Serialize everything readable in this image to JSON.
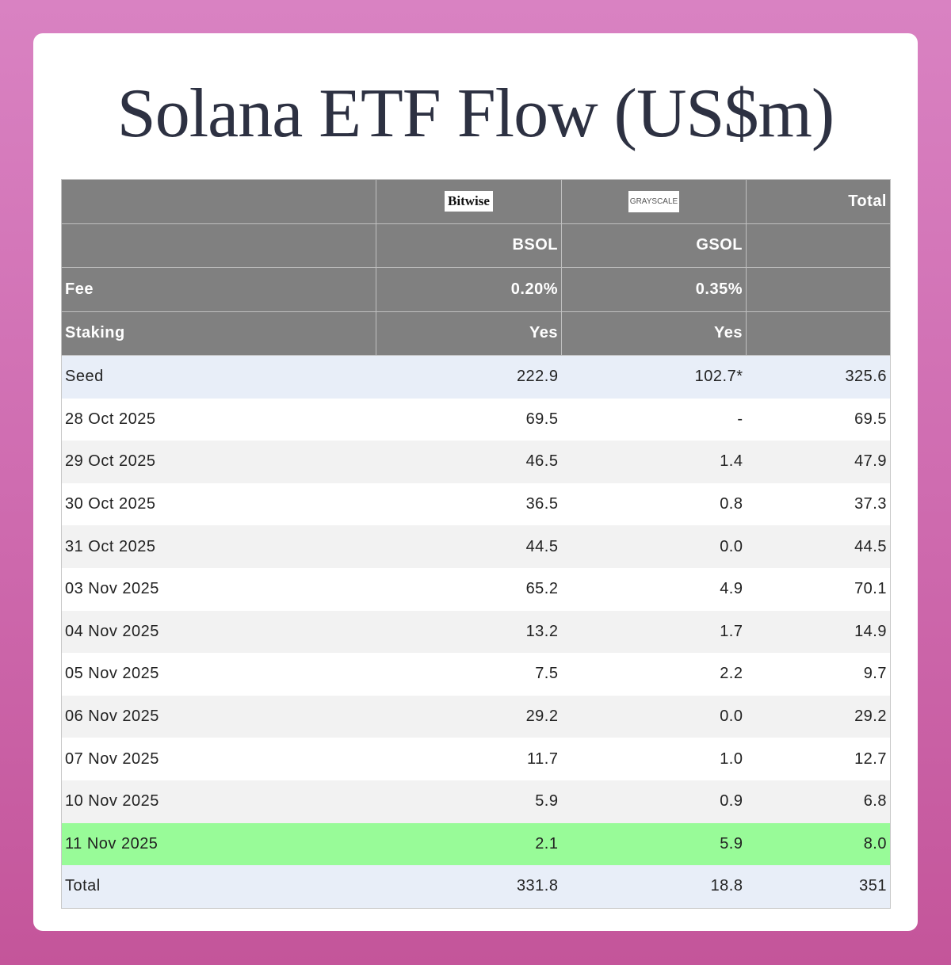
{
  "title": "Solana ETF Flow (US$m)",
  "header": {
    "issuers": [
      "Bitwise",
      "GRAYSCALE"
    ],
    "total_label": "Total",
    "tickers": [
      "BSOL",
      "GSOL"
    ],
    "fee": {
      "label": "Fee",
      "values": [
        "0.20%",
        "0.35%"
      ]
    },
    "staking": {
      "label": "Staking",
      "values": [
        "Yes",
        "Yes"
      ]
    }
  },
  "rows": [
    {
      "date": "Seed",
      "bsol": "222.9",
      "gsol": "102.7*",
      "total": "325.6"
    },
    {
      "date": "28 Oct 2025",
      "bsol": "69.5",
      "gsol": "-",
      "total": "69.5"
    },
    {
      "date": "29 Oct 2025",
      "bsol": "46.5",
      "gsol": "1.4",
      "total": "47.9"
    },
    {
      "date": "30 Oct 2025",
      "bsol": "36.5",
      "gsol": "0.8",
      "total": "37.3"
    },
    {
      "date": "31 Oct 2025",
      "bsol": "44.5",
      "gsol": "0.0",
      "total": "44.5"
    },
    {
      "date": "03 Nov 2025",
      "bsol": "65.2",
      "gsol": "4.9",
      "total": "70.1"
    },
    {
      "date": "04 Nov 2025",
      "bsol": "13.2",
      "gsol": "1.7",
      "total": "14.9"
    },
    {
      "date": "05 Nov 2025",
      "bsol": "7.5",
      "gsol": "2.2",
      "total": "9.7"
    },
    {
      "date": "06 Nov 2025",
      "bsol": "29.2",
      "gsol": "0.0",
      "total": "29.2"
    },
    {
      "date": "07 Nov 2025",
      "bsol": "11.7",
      "gsol": "1.0",
      "total": "12.7"
    },
    {
      "date": "10 Nov 2025",
      "bsol": "5.9",
      "gsol": "0.9",
      "total": "6.8"
    },
    {
      "date": "11 Nov 2025",
      "bsol": "2.1",
      "gsol": "5.9",
      "total": "8.0"
    },
    {
      "date": "Total",
      "bsol": "331.8",
      "gsol": "18.8",
      "total": "351"
    }
  ],
  "colors": {
    "header": "#808080",
    "highlight": "#98fb98",
    "seed_total": "#e8eef8"
  }
}
